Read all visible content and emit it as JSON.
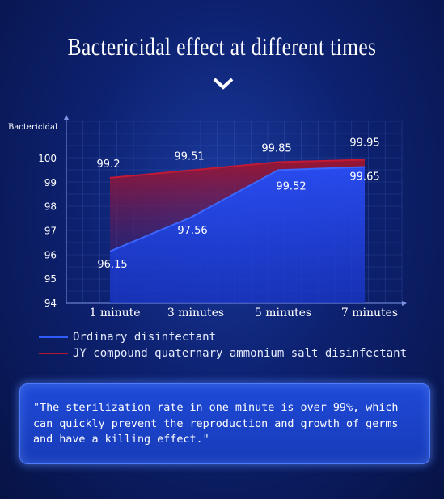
{
  "page": {
    "title": "Bactericidal effect at different times",
    "quote": "\"The sterilization rate in one minute is over 99%, which can quickly prevent the reproduction and growth of germs and have a killing effect.\""
  },
  "icons": {
    "chevron": "chevron-down-icon"
  },
  "colors": {
    "ordinary": "#2f5bff",
    "jy": "#b3162f"
  },
  "chart_data": {
    "type": "area",
    "ylabel": "Bactericidal",
    "xlabel": "",
    "categories": [
      "1 minute",
      "3 minutes",
      "5 minutes",
      "7 minutes"
    ],
    "yticks": [
      "100",
      "99",
      "98",
      "97",
      "96",
      "95",
      "94"
    ],
    "ylim": [
      94,
      100.5
    ],
    "grid": true,
    "legend_position": "bottom-left",
    "series": [
      {
        "name": "Ordinary disinfectant",
        "values": [
          96.15,
          97.56,
          99.52,
          99.65
        ],
        "labels": [
          "96.15",
          "97.56",
          "99.52",
          "99.65"
        ]
      },
      {
        "name": "JY compound quaternary ammonium salt disinfectant",
        "values": [
          99.2,
          99.51,
          99.85,
          99.95
        ],
        "labels": [
          "99.2",
          "99.51",
          "99.85",
          "99.95"
        ]
      }
    ]
  }
}
